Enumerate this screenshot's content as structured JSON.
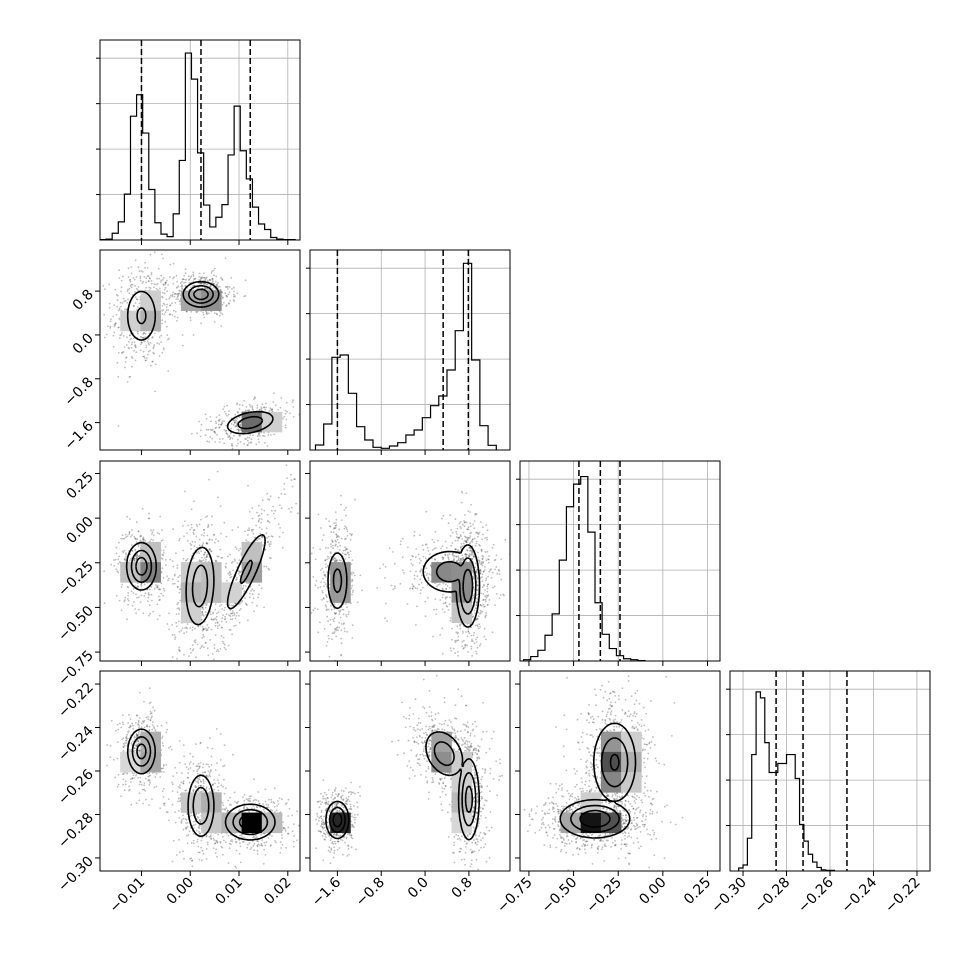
{
  "chart_data": {
    "type": "corner",
    "n_params": 4,
    "params": [
      {
        "range": [
          -0.0185,
          0.0225
        ],
        "ticks": [
          -0.01,
          0.0,
          0.01,
          0.02
        ],
        "tick_labels": [
          "−0.01",
          "0.00",
          "0.01",
          "0.02"
        ],
        "quantiles": [
          -0.01,
          0.0022,
          0.0123
        ],
        "hist": {
          "start": -0.0185,
          "width": 0.00125,
          "counts": [
            1,
            2,
            16,
            43,
            109,
            294,
            345,
            254,
            120,
            41,
            14,
            8,
            62,
            189,
            444,
            382,
            207,
            83,
            31,
            54,
            84,
            202,
            318,
            212,
            145,
            78,
            38,
            25,
            6,
            2,
            1,
            1
          ]
        },
        "hist_ymax": 475
      },
      {
        "range": [
          -2.1,
          1.55
        ],
        "ticks": [
          -1.6,
          -0.8,
          0.0,
          0.8
        ],
        "tick_labels": [
          "−1.6",
          "−0.8",
          "0.0",
          "0.8"
        ],
        "quantiles": [
          -1.6,
          0.33,
          0.79
        ],
        "hist": {
          "start": -2.0,
          "width": 0.15,
          "counts": [
            15,
            78,
            278,
            285,
            170,
            70,
            30,
            8,
            5,
            12,
            22,
            45,
            60,
            97,
            133,
            162,
            240,
            358,
            560,
            270,
            73,
            14
          ]
        },
        "hist_ymax": 600
      },
      {
        "range": [
          -0.8,
          0.32
        ],
        "ticks": [
          -0.75,
          -0.5,
          -0.25,
          0.0,
          0.25
        ],
        "tick_labels": [
          "−0.75",
          "−0.50",
          "−0.25",
          "0.00",
          "0.25"
        ],
        "quantiles": [
          -0.47,
          -0.35,
          -0.24
        ],
        "hist": {
          "start": -0.78,
          "width": 0.04,
          "counts": [
            3,
            10,
            24,
            58,
            106,
            227,
            347,
            398,
            415,
            290,
            131,
            60,
            28,
            12,
            5,
            3,
            1
          ]
        },
        "hist_ymax": 450
      },
      {
        "range": [
          -0.306,
          -0.214
        ],
        "ticks": [
          -0.3,
          -0.28,
          -0.26,
          -0.24,
          -0.22
        ],
        "tick_labels": [
          "−0.30",
          "−0.28",
          "−0.26",
          "−0.24",
          "−0.22"
        ],
        "quantiles": [
          -0.2848,
          -0.2724,
          -0.2522
        ],
        "hist": {
          "start": -0.302,
          "width": 0.002,
          "counts": [
            5,
            10,
            55,
            195,
            300,
            290,
            215,
            165,
            165,
            180,
            180,
            195,
            195,
            155,
            78,
            50,
            28,
            15,
            6,
            2,
            1,
            1
          ]
        },
        "hist_ymax": 335
      }
    ],
    "pairs": [
      {
        "x": 0,
        "y": 1,
        "clusters": [
          {
            "mx": -0.01,
            "my": 0.35,
            "sx": 0.0019,
            "sy": 0.3,
            "rho": 0.0,
            "w": 0.34,
            "peak": 0.45
          },
          {
            "mx": 0.0022,
            "my": 0.74,
            "sx": 0.0019,
            "sy": 0.12,
            "rho": 0.0,
            "w": 0.38,
            "peak": 0.95
          },
          {
            "mx": 0.0123,
            "my": -1.6,
            "sx": 0.0028,
            "sy": 0.12,
            "rho": 0.35,
            "w": 0.28,
            "peak": 0.6
          }
        ]
      },
      {
        "x": 0,
        "y": 2,
        "clusters": [
          {
            "mx": -0.01,
            "my": -0.27,
            "sx": 0.0016,
            "sy": 0.07,
            "rho": 0.0,
            "w": 0.34,
            "peak": 0.9
          },
          {
            "mx": 0.002,
            "my": -0.38,
            "sx": 0.0017,
            "sy": 0.13,
            "rho": 0.15,
            "w": 0.36,
            "peak": 0.6
          },
          {
            "mx": 0.0115,
            "my": -0.3,
            "sx": 0.0026,
            "sy": 0.14,
            "rho": 0.85,
            "w": 0.3,
            "peak": 0.45
          }
        ]
      },
      {
        "x": 1,
        "y": 2,
        "clusters": [
          {
            "mx": -1.6,
            "my": -0.35,
            "sx": 0.11,
            "sy": 0.1,
            "rho": 0.0,
            "w": 0.28,
            "peak": 0.5
          },
          {
            "mx": 0.45,
            "my": -0.3,
            "sx": 0.3,
            "sy": 0.07,
            "rho": 0.0,
            "w": 0.28,
            "peak": 0.55
          },
          {
            "mx": 0.78,
            "my": -0.38,
            "sx": 0.11,
            "sy": 0.12,
            "rho": 0.0,
            "w": 0.44,
            "peak": 0.95
          }
        ]
      },
      {
        "x": 0,
        "y": 3,
        "clusters": [
          {
            "mx": -0.01,
            "my": -0.251,
            "sx": 0.0015,
            "sy": 0.0055,
            "rho": 0.0,
            "w": 0.34,
            "peak": 0.85
          },
          {
            "mx": 0.0022,
            "my": -0.276,
            "sx": 0.0015,
            "sy": 0.008,
            "rho": 0.0,
            "w": 0.36,
            "peak": 0.7
          },
          {
            "mx": 0.0123,
            "my": -0.2835,
            "sx": 0.0026,
            "sy": 0.0042,
            "rho": 0.0,
            "w": 0.3,
            "peak": 1.0
          }
        ]
      },
      {
        "x": 1,
        "y": 3,
        "clusters": [
          {
            "mx": -1.6,
            "my": -0.2825,
            "sx": 0.11,
            "sy": 0.0045,
            "rho": 0.0,
            "w": 0.3,
            "peak": 0.9
          },
          {
            "mx": 0.35,
            "my": -0.252,
            "sx": 0.2,
            "sy": 0.006,
            "rho": -0.3,
            "w": 0.35,
            "peak": 0.6
          },
          {
            "mx": 0.8,
            "my": -0.273,
            "sx": 0.1,
            "sy": 0.01,
            "rho": 0.0,
            "w": 0.35,
            "peak": 0.85
          }
        ]
      },
      {
        "x": 2,
        "y": 3,
        "clusters": [
          {
            "mx": -0.38,
            "my": -0.282,
            "sx": 0.1,
            "sy": 0.0045,
            "rho": 0.0,
            "w": 0.55,
            "peak": 1.0
          },
          {
            "mx": -0.27,
            "my": -0.256,
            "sx": 0.065,
            "sy": 0.01,
            "rho": 0.0,
            "w": 0.45,
            "peak": 0.75
          }
        ]
      }
    ],
    "contour_levels": [
      0.15,
      0.4,
      0.7
    ],
    "grid": true
  }
}
